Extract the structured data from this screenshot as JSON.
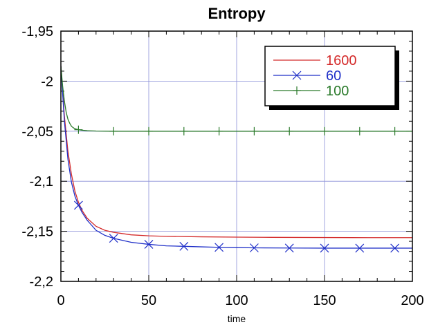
{
  "chart_data": {
    "type": "line",
    "title": "Entropy",
    "xlabel": "time",
    "ylabel": "",
    "xlim": [
      0,
      200
    ],
    "ylim": [
      -2.2,
      -1.95
    ],
    "x_ticks": [
      0,
      50,
      100,
      150,
      200
    ],
    "x_tick_labels": [
      "0",
      "50",
      "100",
      "150",
      "200"
    ],
    "y_ticks": [
      -2.2,
      -2.15,
      -2.1,
      -2.05,
      -2.0,
      -1.95
    ],
    "y_tick_labels": [
      "-2,2",
      "-2,15",
      "-2,1",
      "-2,05",
      "-2",
      "-1,95"
    ],
    "grid": true,
    "legend_position": "top-right",
    "series": [
      {
        "name": "1600",
        "color": "#d42a2a",
        "marker": "none",
        "x": [
          0,
          2,
          4,
          6,
          8,
          10,
          12,
          15,
          20,
          25,
          30,
          40,
          50,
          60,
          80,
          100,
          120,
          150,
          175,
          200
        ],
        "y": [
          -1.985,
          -2.035,
          -2.07,
          -2.093,
          -2.11,
          -2.121,
          -2.129,
          -2.137,
          -2.145,
          -2.149,
          -2.151,
          -2.1535,
          -2.1545,
          -2.155,
          -2.1555,
          -2.1558,
          -2.156,
          -2.1562,
          -2.1563,
          -2.1563
        ]
      },
      {
        "name": "60",
        "color": "#1f2fc8",
        "marker": "x",
        "x": [
          0,
          2,
          4,
          6,
          8,
          10,
          12,
          15,
          20,
          25,
          30,
          40,
          50,
          60,
          70,
          80,
          90,
          100,
          110,
          130,
          150,
          170,
          190,
          200
        ],
        "y": [
          -1.985,
          -2.04,
          -2.078,
          -2.101,
          -2.115,
          -2.124,
          -2.131,
          -2.139,
          -2.149,
          -2.154,
          -2.157,
          -2.161,
          -2.163,
          -2.1645,
          -2.165,
          -2.1655,
          -2.166,
          -2.1662,
          -2.1665,
          -2.1667,
          -2.1668,
          -2.1668,
          -2.1668,
          -2.1668
        ],
        "marker_x": [
          10,
          30,
          50,
          70,
          90,
          110,
          130,
          150,
          170,
          190
        ]
      },
      {
        "name": "100",
        "color": "#2a7a2a",
        "marker": "+",
        "x": [
          0,
          1,
          2,
          3,
          4,
          5,
          6,
          7,
          8,
          10,
          12,
          15,
          20,
          30,
          50,
          100,
          150,
          200
        ],
        "y": [
          -1.985,
          -2.005,
          -2.02,
          -2.031,
          -2.038,
          -2.042,
          -2.045,
          -2.0465,
          -2.0475,
          -2.0485,
          -2.049,
          -2.0495,
          -2.0498,
          -2.05,
          -2.05,
          -2.05,
          -2.05,
          -2.05
        ],
        "marker_x": [
          10,
          30,
          50,
          70,
          90,
          110,
          130,
          150,
          170,
          190
        ]
      }
    ]
  }
}
